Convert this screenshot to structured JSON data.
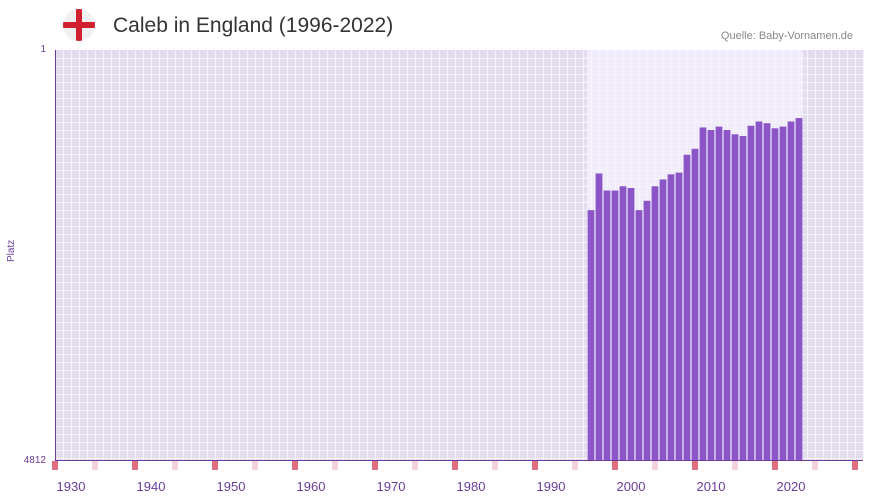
{
  "header": {
    "title": "Caleb in England (1996-2022)",
    "source": "Quelle: Baby-Vornamen.de",
    "flag_icon": "england-flag-icon"
  },
  "colors": {
    "bar": "#8b55c8",
    "band_light": "#f1ecfb",
    "band_dark": "#e3dced",
    "grid": "#f6f3fb",
    "axis": "#6a3d9a",
    "label": "#6a3d9a",
    "marker_strong": "#e07080",
    "marker_light": "#f4d2dc"
  },
  "chart_data": {
    "type": "bar",
    "title": "Caleb in England (1996-2022)",
    "xlabel": "",
    "ylabel": "Platz",
    "y_inverted": true,
    "ylim": [
      1,
      4812
    ],
    "y_tick_labels": [
      "1",
      "4812"
    ],
    "xlim": [
      1928,
      2029
    ],
    "x_ticks": [
      1930,
      1940,
      1950,
      1960,
      1970,
      1980,
      1990,
      2000,
      2010,
      2020
    ],
    "highlight_range": [
      1994.5,
      2021.5
    ],
    "x": [
      1995,
      1996,
      1997,
      1998,
      1999,
      2000,
      2001,
      2002,
      2003,
      2004,
      2005,
      2006,
      2007,
      2008,
      2009,
      2010,
      2011,
      2012,
      2013,
      2014,
      2015,
      2016,
      2017,
      2018,
      2019,
      2020,
      2021
    ],
    "values": [
      1880,
      1450,
      1650,
      1650,
      1600,
      1620,
      1880,
      1770,
      1600,
      1520,
      1460,
      1440,
      1230,
      1160,
      910,
      940,
      900,
      940,
      990,
      1010,
      890,
      840,
      860,
      920,
      900,
      840,
      800
    ],
    "year_markers": {
      "strong": [
        1928,
        1938,
        1948,
        1958,
        1968,
        1978,
        1988,
        1998,
        2008,
        2018,
        2028
      ],
      "light": [
        1933,
        1943,
        1953,
        1963,
        1973,
        1983,
        1993,
        2003,
        2013,
        2023
      ]
    }
  }
}
